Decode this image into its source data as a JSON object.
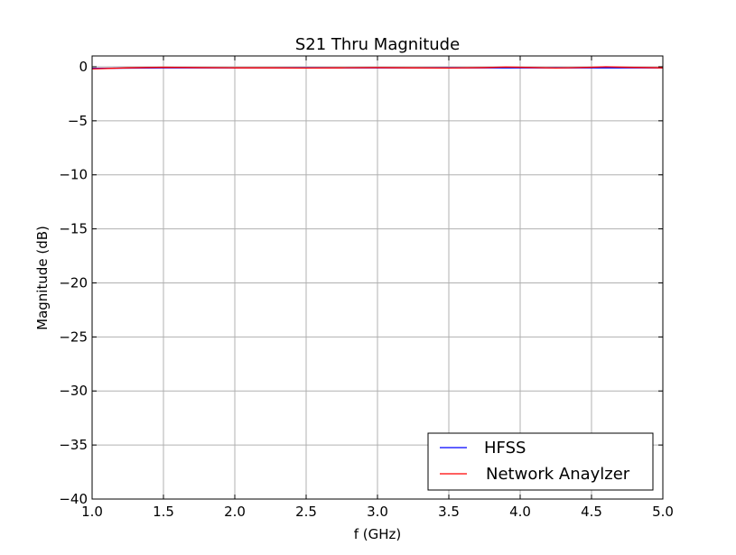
{
  "chart_data": {
    "type": "line",
    "title": "S21 Thru Magnitude",
    "xlabel": "f (GHz)",
    "ylabel": "Magnitude (dB)",
    "xlim": [
      1.0,
      5.0
    ],
    "ylim": [
      -40,
      1
    ],
    "xticks": [
      1.0,
      1.5,
      2.0,
      2.5,
      3.0,
      3.5,
      4.0,
      4.5,
      5.0
    ],
    "xtick_labels": [
      "1.0",
      "1.5",
      "2.0",
      "2.5",
      "3.0",
      "3.5",
      "4.0",
      "4.5",
      "5.0"
    ],
    "yticks": [
      0,
      -5,
      -10,
      -15,
      -20,
      -25,
      -30,
      -35,
      -40
    ],
    "ytick_labels": [
      "0",
      "−5",
      "−10",
      "−15",
      "−20",
      "−25",
      "−30",
      "−35",
      "−40"
    ],
    "grid": true,
    "legend_position": "lower-right",
    "series": [
      {
        "name": "HFSS",
        "color": "#0000ff",
        "x": [
          1.0,
          1.5,
          2.0,
          2.5,
          3.0,
          3.5,
          4.0,
          4.5,
          5.0
        ],
        "values": [
          -0.15,
          -0.1,
          -0.1,
          -0.1,
          -0.1,
          -0.1,
          -0.1,
          -0.1,
          -0.1
        ]
      },
      {
        "name": "Network Anaylzer",
        "color": "#ff0000",
        "x": [
          1.0,
          1.25,
          1.5,
          1.75,
          2.0,
          2.25,
          2.5,
          2.75,
          3.0,
          3.25,
          3.5,
          3.75,
          3.9,
          4.0,
          4.25,
          4.5,
          4.6,
          4.75,
          5.0
        ],
        "values": [
          -0.2,
          -0.1,
          -0.05,
          -0.08,
          -0.1,
          -0.1,
          -0.12,
          -0.1,
          -0.08,
          -0.1,
          -0.12,
          -0.08,
          -0.02,
          -0.05,
          -0.12,
          -0.05,
          0.0,
          -0.05,
          -0.1
        ]
      }
    ]
  }
}
